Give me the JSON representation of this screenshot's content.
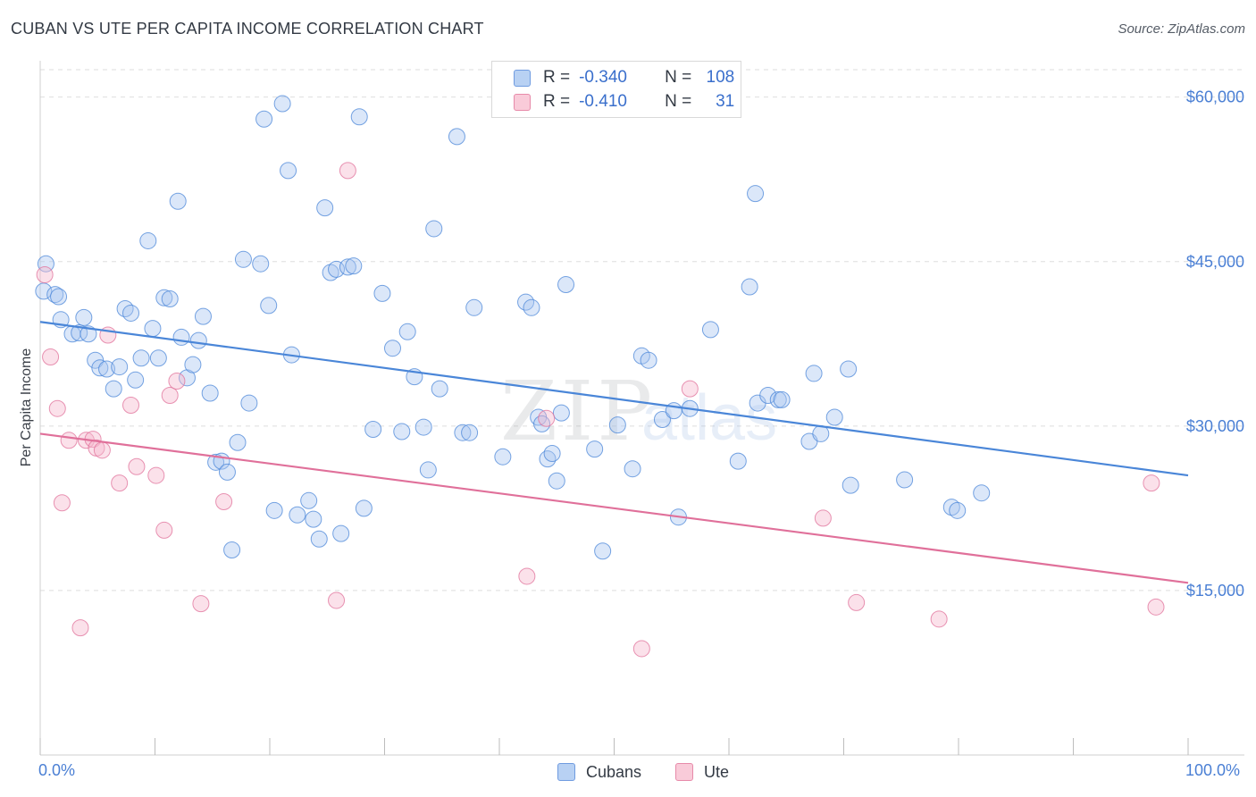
{
  "header": {
    "title": "CUBAN VS UTE PER CAPITA INCOME CORRELATION CHART",
    "source": "Source: ZipAtlas.com"
  },
  "legend": {
    "rows": [
      {
        "r_label": "R =",
        "r_value": "-0.340",
        "n_label": "N =",
        "n_value": "108",
        "color": "#a9c6f0"
      },
      {
        "r_label": "R =",
        "r_value": "-0.410",
        "n_label": "N =",
        "n_value": "31",
        "color": "#f6b8cc"
      }
    ]
  },
  "bottom_legend": [
    {
      "label": "Cubans",
      "color": "#a9c6f0"
    },
    {
      "label": "Ute",
      "color": "#f6b8cc"
    }
  ],
  "watermark": {
    "zip": "ZIP",
    "atlas": "atlas"
  },
  "chart_data": {
    "type": "scatter",
    "title": "CUBAN VS UTE PER CAPITA INCOME CORRELATION CHART",
    "ylabel": "Per Capita Income",
    "xlabel": "",
    "xlim": [
      0,
      100
    ],
    "ylim": [
      0,
      62500
    ],
    "x_tick_labels": [
      "0.0%",
      "100.0%"
    ],
    "y_ticks": [
      15000,
      30000,
      45000,
      60000
    ],
    "y_tick_labels": [
      "$15,000",
      "$30,000",
      "$45,000",
      "$60,000"
    ],
    "grid": true,
    "legend_position": "top-center",
    "series": [
      {
        "name": "Cubans",
        "color": "#4a86d8",
        "fill": "#a9c6f0",
        "trend": {
          "x": [
            0,
            100
          ],
          "y": [
            39500,
            25500
          ]
        },
        "points": [
          [
            0.5,
            44800
          ],
          [
            0.3,
            42300
          ],
          [
            1.3,
            42000
          ],
          [
            1.6,
            41800
          ],
          [
            1.8,
            39700
          ],
          [
            2.8,
            38400
          ],
          [
            3.4,
            38500
          ],
          [
            3.8,
            39900
          ],
          [
            4.2,
            38400
          ],
          [
            4.8,
            36000
          ],
          [
            5.2,
            35300
          ],
          [
            5.8,
            35200
          ],
          [
            6.4,
            33400
          ],
          [
            6.9,
            35400
          ],
          [
            7.4,
            40700
          ],
          [
            7.9,
            40300
          ],
          [
            8.3,
            34200
          ],
          [
            8.8,
            36200
          ],
          [
            9.4,
            46900
          ],
          [
            9.8,
            38900
          ],
          [
            10.3,
            36200
          ],
          [
            10.8,
            41700
          ],
          [
            11.3,
            41600
          ],
          [
            12.0,
            50500
          ],
          [
            12.3,
            38100
          ],
          [
            12.8,
            34400
          ],
          [
            13.3,
            35600
          ],
          [
            13.8,
            37800
          ],
          [
            14.2,
            40000
          ],
          [
            14.8,
            33000
          ],
          [
            15.3,
            26700
          ],
          [
            15.8,
            26800
          ],
          [
            16.3,
            25800
          ],
          [
            16.7,
            18700
          ],
          [
            17.2,
            28500
          ],
          [
            17.7,
            45200
          ],
          [
            18.2,
            32100
          ],
          [
            19.2,
            44800
          ],
          [
            19.5,
            58000
          ],
          [
            19.9,
            41000
          ],
          [
            20.4,
            22300
          ],
          [
            21.1,
            59400
          ],
          [
            21.6,
            53300
          ],
          [
            21.9,
            36500
          ],
          [
            22.4,
            21900
          ],
          [
            23.4,
            23200
          ],
          [
            23.8,
            21500
          ],
          [
            24.3,
            19700
          ],
          [
            24.8,
            49900
          ],
          [
            25.3,
            44000
          ],
          [
            25.8,
            44300
          ],
          [
            26.2,
            20200
          ],
          [
            26.8,
            44500
          ],
          [
            27.3,
            44600
          ],
          [
            27.8,
            58200
          ],
          [
            28.2,
            22500
          ],
          [
            29.0,
            29700
          ],
          [
            29.8,
            42100
          ],
          [
            30.7,
            37100
          ],
          [
            31.5,
            29500
          ],
          [
            32.0,
            38600
          ],
          [
            32.6,
            34500
          ],
          [
            33.4,
            29900
          ],
          [
            33.8,
            26000
          ],
          [
            34.3,
            48000
          ],
          [
            34.8,
            33400
          ],
          [
            36.3,
            56400
          ],
          [
            36.8,
            29400
          ],
          [
            37.4,
            29400
          ],
          [
            37.8,
            40800
          ],
          [
            40.3,
            27200
          ],
          [
            42.3,
            41300
          ],
          [
            42.8,
            40800
          ],
          [
            43.4,
            30800
          ],
          [
            43.7,
            30200
          ],
          [
            44.2,
            27000
          ],
          [
            44.6,
            27500
          ],
          [
            45.0,
            25000
          ],
          [
            45.4,
            31200
          ],
          [
            45.8,
            42900
          ],
          [
            48.3,
            27900
          ],
          [
            49.0,
            18600
          ],
          [
            50.3,
            30100
          ],
          [
            51.6,
            26100
          ],
          [
            52.4,
            36400
          ],
          [
            53.0,
            36000
          ],
          [
            54.2,
            30600
          ],
          [
            55.2,
            31400
          ],
          [
            55.6,
            21700
          ],
          [
            56.6,
            31600
          ],
          [
            58.4,
            38800
          ],
          [
            60.8,
            26800
          ],
          [
            61.8,
            42700
          ],
          [
            62.3,
            51200
          ],
          [
            62.5,
            32100
          ],
          [
            63.4,
            32800
          ],
          [
            64.3,
            32400
          ],
          [
            64.6,
            32400
          ],
          [
            67.0,
            28600
          ],
          [
            67.4,
            34800
          ],
          [
            68.0,
            29300
          ],
          [
            69.2,
            30800
          ],
          [
            70.4,
            35200
          ],
          [
            70.6,
            24600
          ],
          [
            75.3,
            25100
          ],
          [
            79.4,
            22600
          ],
          [
            79.9,
            22300
          ],
          [
            82.0,
            23900
          ]
        ]
      },
      {
        "name": "Ute",
        "color": "#e0709a",
        "fill": "#f6b8cc",
        "trend": {
          "x": [
            0,
            100
          ],
          "y": [
            29300,
            15700
          ]
        },
        "points": [
          [
            0.4,
            43800
          ],
          [
            0.9,
            36300
          ],
          [
            1.5,
            31600
          ],
          [
            1.9,
            23000
          ],
          [
            2.5,
            28700
          ],
          [
            3.5,
            11600
          ],
          [
            4.0,
            28700
          ],
          [
            4.6,
            28800
          ],
          [
            4.9,
            28000
          ],
          [
            5.4,
            27800
          ],
          [
            5.9,
            38300
          ],
          [
            6.9,
            24800
          ],
          [
            7.9,
            31900
          ],
          [
            8.4,
            26300
          ],
          [
            10.1,
            25500
          ],
          [
            10.8,
            20500
          ],
          [
            11.3,
            32800
          ],
          [
            11.9,
            34100
          ],
          [
            14.0,
            13800
          ],
          [
            16.0,
            23100
          ],
          [
            25.8,
            14100
          ],
          [
            26.8,
            53300
          ],
          [
            42.4,
            16300
          ],
          [
            44.1,
            30700
          ],
          [
            52.4,
            9700
          ],
          [
            56.6,
            33400
          ],
          [
            68.2,
            21600
          ],
          [
            71.1,
            13900
          ],
          [
            78.3,
            12400
          ],
          [
            96.8,
            24800
          ],
          [
            97.2,
            13500
          ]
        ]
      }
    ]
  }
}
